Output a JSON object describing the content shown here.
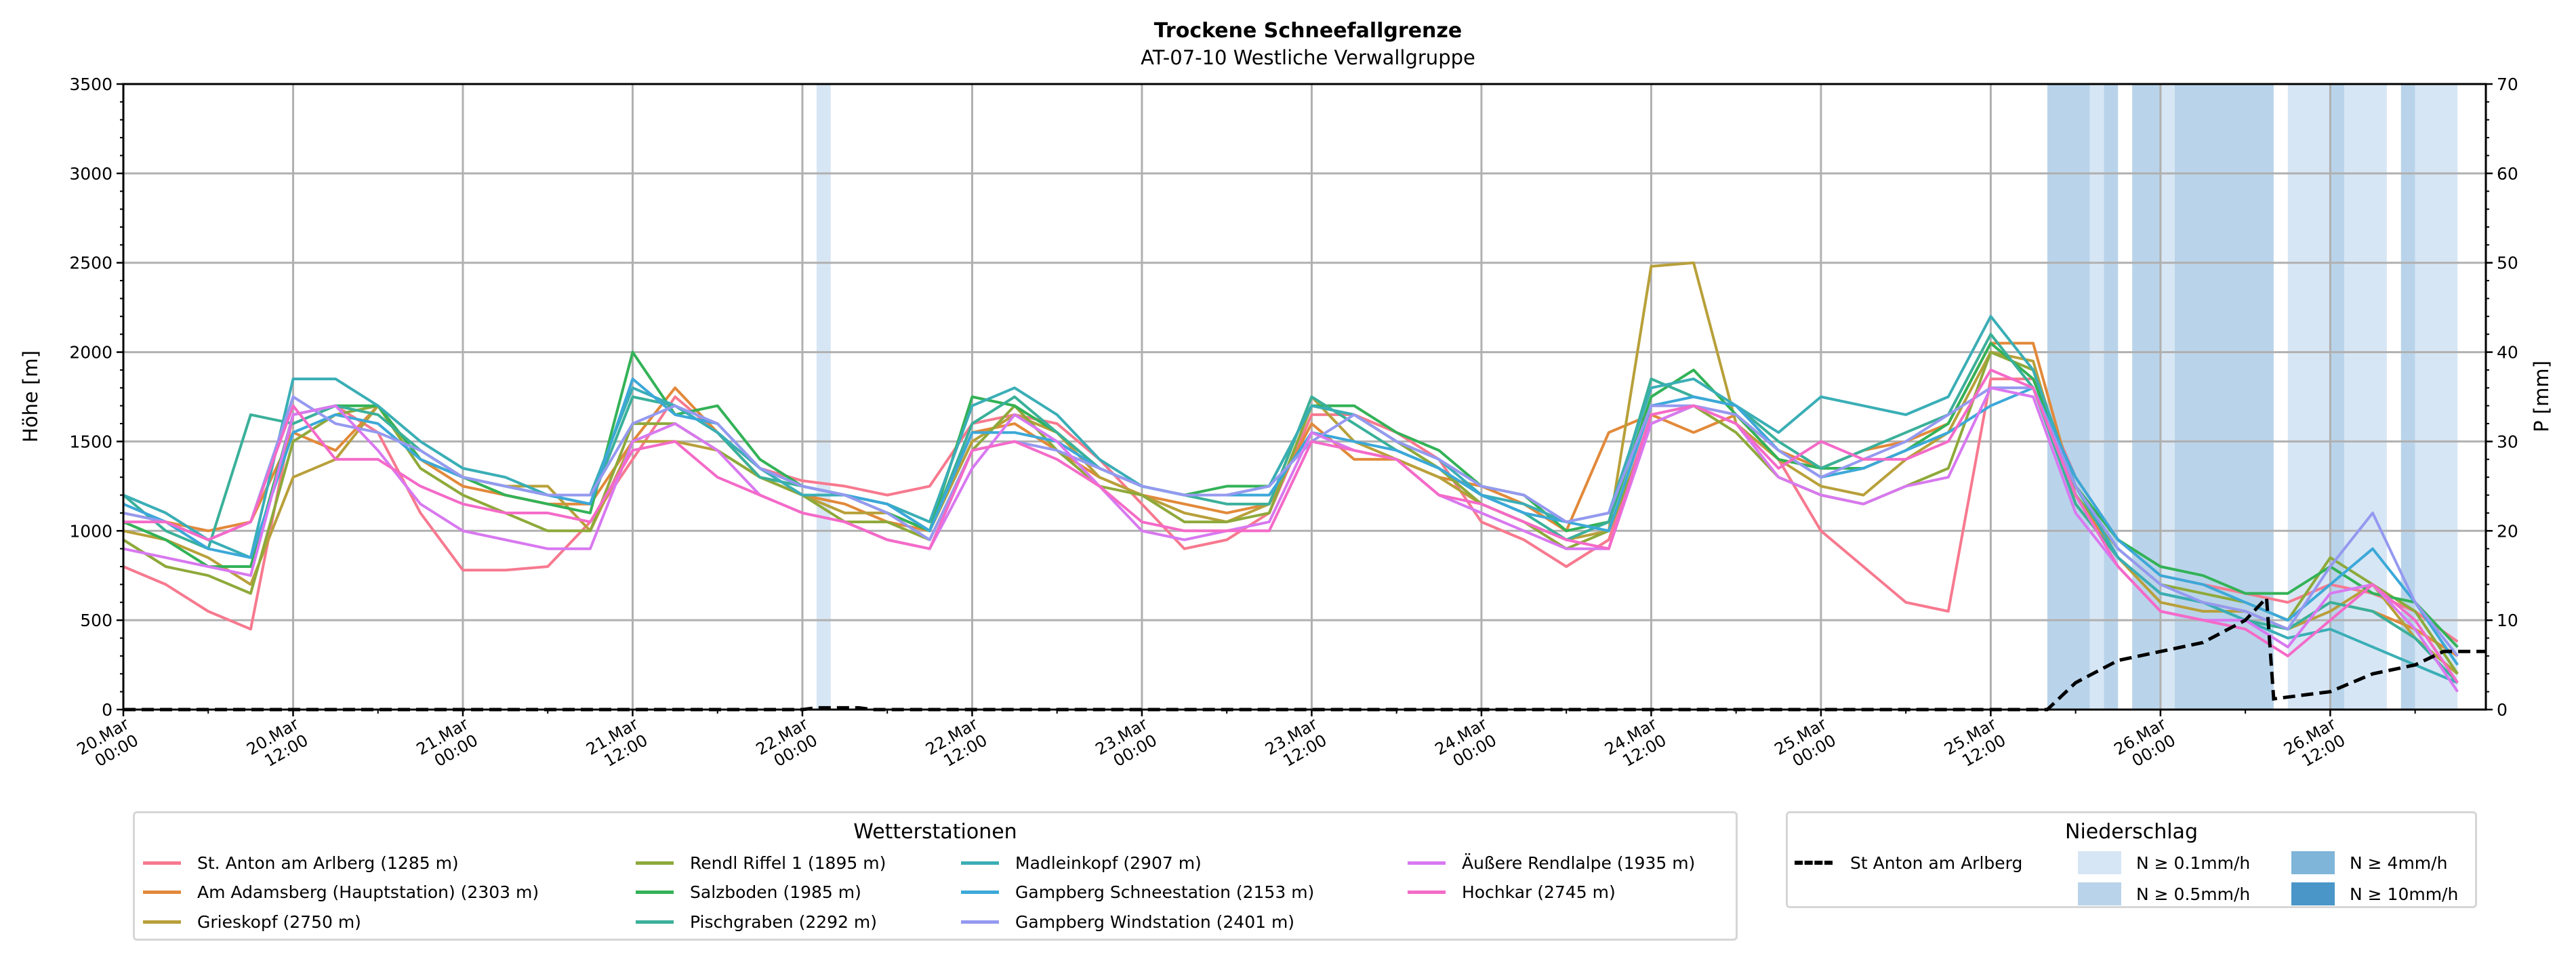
{
  "chart_data": {
    "type": "line",
    "title": "Trockene Schneefallgrenze",
    "subtitle": "AT-07-10 Westliche Verwallgruppe",
    "ylabel": "Höhe [m]",
    "ylabel_right": "P [mm]",
    "ylim": [
      0,
      3500
    ],
    "ylim_right": [
      0,
      70
    ],
    "yticks": [
      "0",
      "500",
      "1000",
      "1500",
      "2000",
      "2500",
      "3000",
      "3500"
    ],
    "yticks_right": [
      "0",
      "10",
      "20",
      "30",
      "40",
      "50",
      "60",
      "70"
    ],
    "x_unit": "hours since 20.Mar 00:00",
    "xlim": [
      0,
      167
    ],
    "xticks": [
      {
        "h": 0,
        "l1": "20.Mar",
        "l2": "00:00"
      },
      {
        "h": 12,
        "l1": "20.Mar",
        "l2": "12:00"
      },
      {
        "h": 24,
        "l1": "21.Mar",
        "l2": "00:00"
      },
      {
        "h": 36,
        "l1": "21.Mar",
        "l2": "12:00"
      },
      {
        "h": 48,
        "l1": "22.Mar",
        "l2": "00:00"
      },
      {
        "h": 60,
        "l1": "22.Mar",
        "l2": "12:00"
      },
      {
        "h": 72,
        "l1": "23.Mar",
        "l2": "00:00"
      },
      {
        "h": 84,
        "l1": "23.Mar",
        "l2": "12:00"
      },
      {
        "h": 96,
        "l1": "24.Mar",
        "l2": "00:00"
      },
      {
        "h": 108,
        "l1": "24.Mar",
        "l2": "12:00"
      },
      {
        "h": 120,
        "l1": "25.Mar",
        "l2": "00:00"
      },
      {
        "h": 132,
        "l1": "25.Mar",
        "l2": "12:00"
      },
      {
        "h": 144,
        "l1": "26.Mar",
        "l2": "00:00"
      },
      {
        "h": 156,
        "l1": "26.Mar",
        "l2": "12:00"
      }
    ],
    "x_step_hours": 3,
    "grid": true,
    "series": [
      {
        "name": "St. Anton am Arlberg (1285 m)",
        "color": "#f7798f",
        "values": [
          800,
          700,
          550,
          450,
          1650,
          1700,
          1550,
          1100,
          780,
          780,
          800,
          1050,
          1400,
          1750,
          1550,
          1350,
          1280,
          1250,
          1200,
          1250,
          1600,
          1650,
          1600,
          1400,
          1150,
          900,
          950,
          1100,
          1650,
          1650,
          1550,
          1400,
          1050,
          950,
          800,
          950,
          1650,
          1700,
          1650,
          1400,
          1000,
          800,
          600,
          550,
          1850,
          1850,
          1300,
          950,
          750,
          700,
          650,
          600,
          700,
          650,
          550,
          380
        ]
      },
      {
        "name": "Am Adamsberg (Hauptstation) (2303 m)",
        "color": "#e2893a",
        "values": [
          1100,
          1050,
          1000,
          1050,
          1550,
          1450,
          1700,
          1400,
          1250,
          1200,
          1150,
          1150,
          1500,
          1800,
          1550,
          1300,
          1200,
          1150,
          1050,
          1000,
          1550,
          1600,
          1450,
          1300,
          1200,
          1150,
          1100,
          1150,
          1600,
          1400,
          1400,
          1300,
          1250,
          1150,
          1000,
          1550,
          1650,
          1550,
          1650,
          1450,
          1350,
          1450,
          1500,
          1600,
          2050,
          2050,
          1200,
          850,
          650,
          600,
          550,
          450,
          600,
          550,
          450,
          300
        ]
      },
      {
        "name": "Grieskopf (2750 m)",
        "color": "#b8a03a",
        "values": [
          1000,
          950,
          850,
          700,
          1300,
          1400,
          1700,
          1400,
          1300,
          1250,
          1250,
          1000,
          1500,
          1500,
          1450,
          1300,
          1200,
          1100,
          1100,
          1000,
          1500,
          1650,
          1550,
          1300,
          1200,
          1100,
          1050,
          1150,
          1750,
          1500,
          1400,
          1300,
          1150,
          1050,
          950,
          1000,
          2480,
          2500,
          1600,
          1400,
          1250,
          1200,
          1400,
          1550,
          2000,
          1950,
          1150,
          850,
          600,
          550,
          550,
          450,
          550,
          700,
          400,
          200
        ]
      },
      {
        "name": "Rendl Riffel 1 (1895 m)",
        "color": "#8ea93a",
        "values": [
          950,
          800,
          750,
          650,
          1500,
          1650,
          1700,
          1350,
          1200,
          1100,
          1000,
          1000,
          1600,
          1600,
          1450,
          1300,
          1200,
          1050,
          1050,
          950,
          1450,
          1700,
          1450,
          1250,
          1200,
          1050,
          1050,
          1100,
          1700,
          1650,
          1500,
          1350,
          1150,
          1050,
          900,
          1000,
          1600,
          1700,
          1550,
          1300,
          1200,
          1150,
          1250,
          1350,
          2000,
          1900,
          1200,
          900,
          700,
          650,
          600,
          500,
          850,
          700,
          550,
          200
        ]
      },
      {
        "name": "Salzboden (1985 m)",
        "color": "#33b257",
        "values": [
          1050,
          950,
          800,
          800,
          1650,
          1700,
          1700,
          1400,
          1300,
          1200,
          1150,
          1100,
          2000,
          1650,
          1700,
          1400,
          1250,
          1200,
          1100,
          1000,
          1750,
          1700,
          1550,
          1350,
          1250,
          1200,
          1250,
          1250,
          1700,
          1700,
          1550,
          1450,
          1250,
          1200,
          1000,
          1050,
          1750,
          1900,
          1650,
          1400,
          1350,
          1350,
          1450,
          1600,
          2050,
          1850,
          1250,
          950,
          800,
          750,
          650,
          650,
          800,
          650,
          600,
          350
        ]
      },
      {
        "name": "Pischgraben (2292 m)",
        "color": "#3ab09a",
        "values": [
          1200,
          1000,
          900,
          1650,
          1600,
          1700,
          1650,
          1450,
          1300,
          1250,
          1200,
          1150,
          1750,
          1700,
          1550,
          1300,
          1250,
          1200,
          1150,
          1000,
          1600,
          1750,
          1550,
          1350,
          1250,
          1200,
          1150,
          1150,
          1750,
          1600,
          1450,
          1350,
          1200,
          1100,
          950,
          1050,
          1850,
          1750,
          1700,
          1500,
          1350,
          1450,
          1550,
          1650,
          2100,
          1800,
          1150,
          850,
          650,
          600,
          500,
          450,
          600,
          550,
          400,
          150
        ]
      },
      {
        "name": "Madleinkopf (2907 m)",
        "color": "#3aaeb6",
        "values": [
          1200,
          1100,
          950,
          850,
          1850,
          1850,
          1700,
          1500,
          1350,
          1300,
          1200,
          1200,
          1800,
          1700,
          1550,
          1350,
          1200,
          1200,
          1150,
          1050,
          1700,
          1800,
          1650,
          1400,
          1250,
          1200,
          1200,
          1250,
          1700,
          1650,
          1500,
          1400,
          1200,
          1150,
          1050,
          1100,
          1800,
          1850,
          1700,
          1550,
          1750,
          1700,
          1650,
          1750,
          2200,
          1900,
          1250,
          850,
          650,
          600,
          500,
          400,
          450,
          350,
          250,
          150
        ]
      },
      {
        "name": "Gampberg Schneestation (2153 m)",
        "color": "#3ca8d8",
        "values": [
          1150,
          1050,
          900,
          850,
          1550,
          1650,
          1600,
          1400,
          1300,
          1250,
          1200,
          1150,
          1850,
          1650,
          1600,
          1350,
          1250,
          1200,
          1150,
          1000,
          1550,
          1550,
          1500,
          1350,
          1250,
          1200,
          1200,
          1200,
          1550,
          1500,
          1450,
          1350,
          1200,
          1100,
          1050,
          1000,
          1700,
          1750,
          1700,
          1450,
          1300,
          1350,
          1450,
          1550,
          1700,
          1800,
          1300,
          950,
          750,
          700,
          600,
          500,
          700,
          900,
          600,
          250
        ]
      },
      {
        "name": "Gampberg Windstation (2401 m)",
        "color": "#9599f0",
        "values": [
          1100,
          1050,
          950,
          1050,
          1750,
          1600,
          1550,
          1450,
          1300,
          1250,
          1200,
          1200,
          1600,
          1700,
          1600,
          1350,
          1250,
          1200,
          1100,
          950,
          1450,
          1500,
          1450,
          1350,
          1250,
          1200,
          1200,
          1250,
          1500,
          1650,
          1500,
          1400,
          1250,
          1200,
          1050,
          1100,
          1700,
          1700,
          1650,
          1450,
          1300,
          1400,
          1500,
          1650,
          1800,
          1800,
          1250,
          900,
          700,
          600,
          550,
          450,
          800,
          1100,
          600,
          300
        ]
      },
      {
        "name": "Äußere Rendlalpe (1935 m)",
        "color": "#d878f0",
        "values": [
          900,
          850,
          800,
          750,
          1650,
          1700,
          1450,
          1150,
          1000,
          950,
          900,
          900,
          1500,
          1600,
          1450,
          1200,
          1100,
          1050,
          950,
          900,
          1350,
          1650,
          1500,
          1250,
          1000,
          950,
          1000,
          1050,
          1550,
          1450,
          1400,
          1200,
          1100,
          1000,
          900,
          900,
          1600,
          1700,
          1600,
          1300,
          1200,
          1150,
          1250,
          1300,
          1800,
          1750,
          1100,
          800,
          550,
          500,
          500,
          350,
          650,
          700,
          450,
          100
        ]
      },
      {
        "name": "Hochkar (2745 m)",
        "color": "#f46ac8",
        "values": [
          1050,
          1050,
          950,
          1050,
          1700,
          1400,
          1400,
          1250,
          1150,
          1100,
          1100,
          1050,
          1450,
          1500,
          1300,
          1200,
          1100,
          1050,
          950,
          900,
          1450,
          1500,
          1400,
          1250,
          1050,
          1000,
          1000,
          1000,
          1500,
          1450,
          1400,
          1200,
          1150,
          1050,
          950,
          900,
          1650,
          1700,
          1600,
          1350,
          1500,
          1400,
          1400,
          1500,
          1900,
          1800,
          1200,
          800,
          550,
          500,
          450,
          300,
          500,
          700,
          500,
          150
        ]
      }
    ],
    "precip_series": {
      "name": "St Anton am Arlberg",
      "color": "#000000",
      "points": [
        [
          0,
          0
        ],
        [
          48,
          0
        ],
        [
          49,
          0.2
        ],
        [
          52,
          0.2
        ],
        [
          53,
          0
        ],
        [
          136,
          0
        ],
        [
          138,
          3
        ],
        [
          141,
          5.5
        ],
        [
          144,
          6.5
        ],
        [
          147,
          7.5
        ],
        [
          150,
          10
        ],
        [
          151.5,
          12.5
        ],
        [
          152,
          1.2
        ],
        [
          156,
          2
        ],
        [
          159,
          4
        ],
        [
          162,
          5
        ],
        [
          164,
          6.5
        ],
        [
          167,
          6.5
        ]
      ]
    },
    "precip_bands": [
      {
        "from": 49,
        "to": 50,
        "level": "0.1"
      },
      {
        "from": 136,
        "to": 139,
        "level": "0.5"
      },
      {
        "from": 139,
        "to": 140,
        "level": "0.1"
      },
      {
        "from": 140,
        "to": 141,
        "level": "0.5"
      },
      {
        "from": 142,
        "to": 144,
        "level": "0.5"
      },
      {
        "from": 144,
        "to": 145,
        "level": "0.1"
      },
      {
        "from": 145,
        "to": 152,
        "level": "0.5"
      },
      {
        "from": 153,
        "to": 156,
        "level": "0.1"
      },
      {
        "from": 156,
        "to": 157,
        "level": "0.5"
      },
      {
        "from": 157,
        "to": 160,
        "level": "0.1"
      },
      {
        "from": 161,
        "to": 162,
        "level": "0.5"
      },
      {
        "from": 162,
        "to": 165,
        "level": "0.1"
      }
    ],
    "precip_levels": {
      "0.1": "#d7e6f4",
      "0.5": "#b9d4ea",
      "4": "#7fb5d9",
      "10": "#4a96c8"
    },
    "legend_stations": {
      "title": "Wetterstationen",
      "placement": "bottom-left"
    },
    "legend_precip": {
      "title": "Niederschlag",
      "placement": "bottom-right",
      "line_label": "St Anton am Arlberg",
      "items": [
        {
          "label": "N ≥ 0.1mm/h",
          "level": "0.1"
        },
        {
          "label": "N ≥ 0.5mm/h",
          "level": "0.5"
        },
        {
          "label": "N ≥ 4mm/h",
          "level": "4"
        },
        {
          "label": "N ≥ 10mm/h",
          "level": "10"
        }
      ]
    }
  }
}
